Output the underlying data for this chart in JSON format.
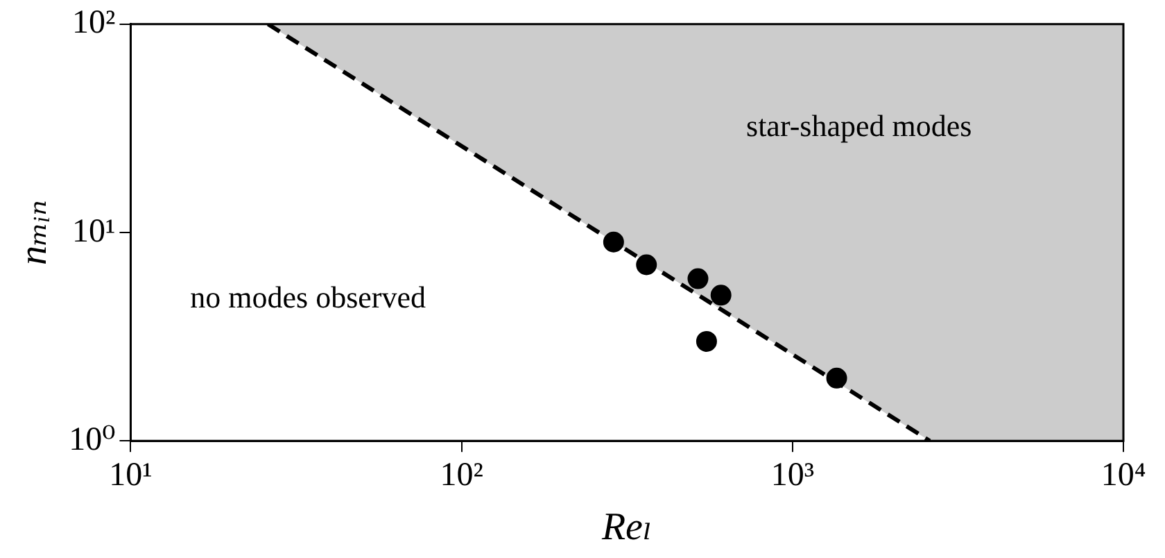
{
  "chart_data": {
    "type": "scatter",
    "xlabel": "Reₗ",
    "ylabel": "nₘᵢₙ",
    "log": "xy",
    "xlim": [
      10,
      10000
    ],
    "ylim": [
      1,
      100
    ],
    "xticks": [
      {
        "value": 10,
        "label": "10¹"
      },
      {
        "value": 100,
        "label": "10²"
      },
      {
        "value": 1000,
        "label": "10³"
      },
      {
        "value": 10000,
        "label": "10⁴"
      }
    ],
    "yticks": [
      {
        "value": 1,
        "label": "10⁰"
      },
      {
        "value": 10,
        "label": "10¹"
      },
      {
        "value": 100,
        "label": "10²"
      }
    ],
    "grid": false,
    "legend": false,
    "series": [
      {
        "type": "line",
        "color": "#000000",
        "line_style": "dashed",
        "marker": "none",
        "x": [
          26,
          2600,
          10000
        ],
        "values": [
          100,
          1,
          null
        ],
        "lower": [
          100,
          1,
          1
        ],
        "upper": [
          100,
          100,
          100
        ]
      },
      {
        "color": "#000000",
        "marker": "circle",
        "x": [
          288,
          362,
          518,
          608,
          550,
          1360
        ],
        "values": [
          9,
          7,
          6,
          5,
          3,
          2
        ]
      }
    ],
    "annotations": [
      "star-shaped modes",
      "no modes observed"
    ]
  }
}
